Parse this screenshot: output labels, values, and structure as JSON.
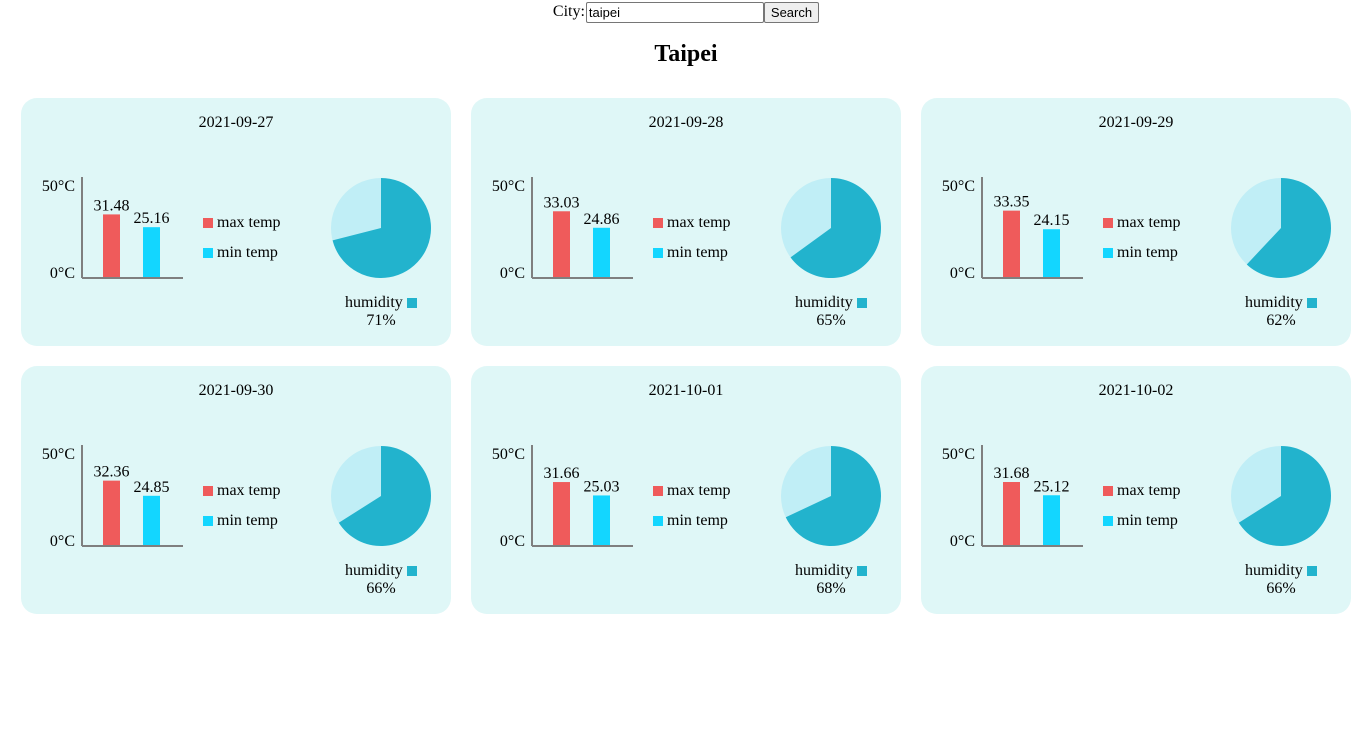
{
  "search": {
    "label": "City:",
    "value": "taipei",
    "button_label": "Search"
  },
  "city_title": "Taipei",
  "legend": {
    "max_label": "max temp",
    "min_label": "min temp",
    "humidity_label": "humidity"
  },
  "axis": {
    "top_label": "50°C",
    "bottom_label": "0°C",
    "max": 50,
    "min": 0
  },
  "colors": {
    "max_bar": "#ef5b5b",
    "min_bar": "#13d6ff",
    "humidity": "#22b3cd",
    "humidity_rest": "#c0eef6",
    "card_bg": "#dff7f7"
  },
  "chart_data": [
    {
      "type": "bar",
      "title": "2021-09-27",
      "categories": [
        "max temp",
        "min temp"
      ],
      "values": [
        31.48,
        25.16
      ],
      "ylim": [
        0,
        50
      ],
      "humidity_percent": 71,
      "humidity_label": "71%"
    },
    {
      "type": "bar",
      "title": "2021-09-28",
      "categories": [
        "max temp",
        "min temp"
      ],
      "values": [
        33.03,
        24.86
      ],
      "ylim": [
        0,
        50
      ],
      "humidity_percent": 65,
      "humidity_label": "65%"
    },
    {
      "type": "bar",
      "title": "2021-09-29",
      "categories": [
        "max temp",
        "min temp"
      ],
      "values": [
        33.35,
        24.15
      ],
      "ylim": [
        0,
        50
      ],
      "humidity_percent": 62,
      "humidity_label": "62%"
    },
    {
      "type": "bar",
      "title": "2021-09-30",
      "categories": [
        "max temp",
        "min temp"
      ],
      "values": [
        32.36,
        24.85
      ],
      "ylim": [
        0,
        50
      ],
      "humidity_percent": 66,
      "humidity_label": "66%"
    },
    {
      "type": "bar",
      "title": "2021-10-01",
      "categories": [
        "max temp",
        "min temp"
      ],
      "values": [
        31.66,
        25.03
      ],
      "ylim": [
        0,
        50
      ],
      "humidity_percent": 68,
      "humidity_label": "68%"
    },
    {
      "type": "bar",
      "title": "2021-10-02",
      "categories": [
        "max temp",
        "min temp"
      ],
      "values": [
        31.68,
        25.12
      ],
      "ylim": [
        0,
        50
      ],
      "humidity_percent": 66,
      "humidity_label": "66%"
    }
  ]
}
